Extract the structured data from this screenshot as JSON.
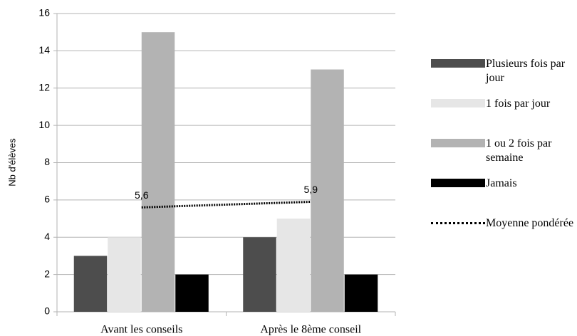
{
  "chart_data": {
    "type": "bar",
    "ylabel": "Nb d'élèves",
    "categories": [
      "Avant les conseils",
      "Après le 8ème conseil"
    ],
    "series": [
      {
        "name": "Plusieurs fois par jour",
        "color": "#4d4d4d",
        "values": [
          3,
          4
        ]
      },
      {
        "name": "1 fois par jour",
        "color": "#e6e6e6",
        "values": [
          4,
          5
        ]
      },
      {
        "name": "1 ou 2 fois par semaine",
        "color": "#b3b3b3",
        "values": [
          15,
          13
        ]
      },
      {
        "name": "Jamais",
        "color": "#000000",
        "values": [
          2,
          2
        ]
      },
      {
        "name": "Moyenne pondérée",
        "type": "line",
        "color": "#000000",
        "values": [
          5.6,
          5.9
        ],
        "value_labels": [
          "5,6",
          "5,9"
        ]
      }
    ],
    "ylim": [
      0,
      16
    ],
    "yticks": [
      0,
      2,
      4,
      6,
      8,
      10,
      12,
      14,
      16
    ],
    "grid": true,
    "legend": "right"
  }
}
